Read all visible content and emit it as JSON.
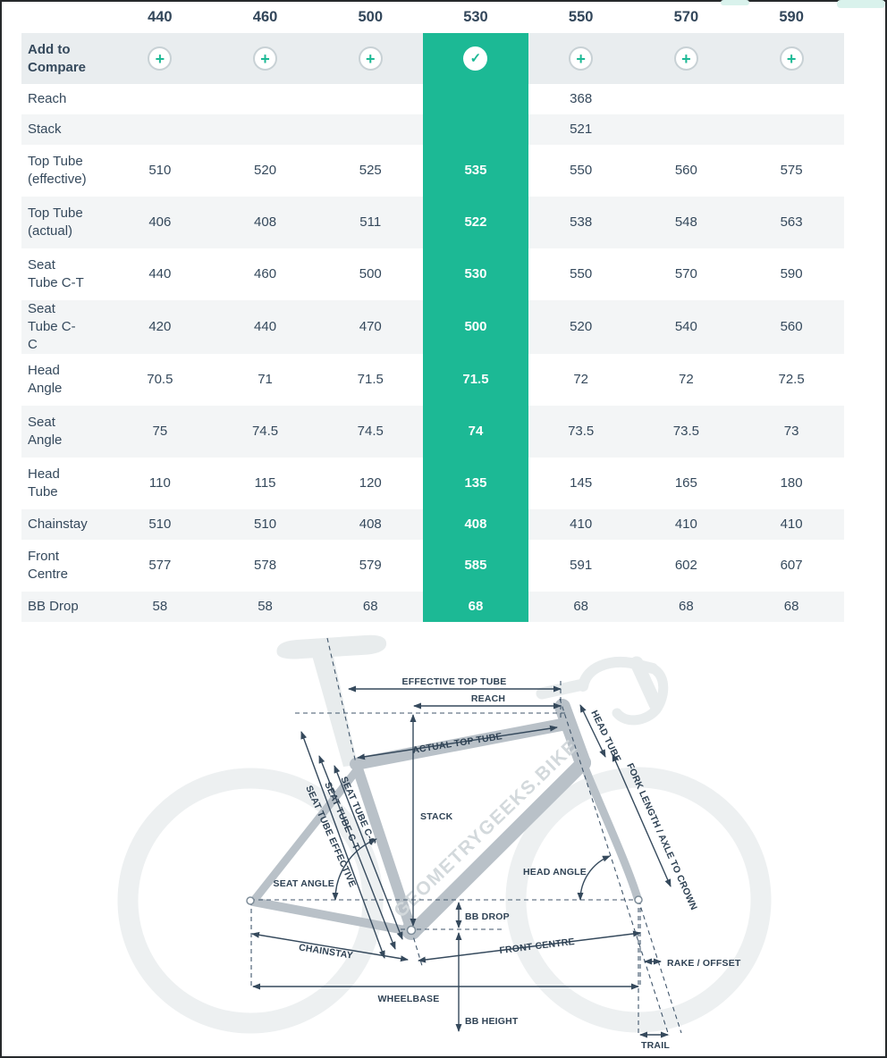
{
  "page": {
    "background": "#ffffff",
    "frame_border_color": "#26292b",
    "accent_teal": "#1cb995",
    "text_color": "#35495c",
    "stripe_color": "#f3f5f6",
    "compare_row_color": "#e9edef"
  },
  "table": {
    "columns": [
      "440",
      "460",
      "500",
      "530",
      "550",
      "570",
      "590"
    ],
    "selected_column": "530",
    "compare_row_label": "Add to Compare",
    "icons": {
      "add_glyph": "+",
      "add_icon_name": "plus-icon",
      "selected_glyph": "✓",
      "selected_icon_name": "check-icon"
    },
    "rows": [
      {
        "label": "Reach",
        "values": [
          "",
          "",
          "",
          "",
          "368",
          "",
          ""
        ]
      },
      {
        "label": "Stack",
        "values": [
          "",
          "",
          "",
          "",
          "521",
          "",
          ""
        ]
      },
      {
        "label": "Top Tube (effective)",
        "values": [
          "510",
          "520",
          "525",
          "535",
          "550",
          "560",
          "575"
        ]
      },
      {
        "label": "Top Tube (actual)",
        "values": [
          "406",
          "408",
          "511",
          "522",
          "538",
          "548",
          "563"
        ]
      },
      {
        "label": "Seat Tube C-T",
        "values": [
          "440",
          "460",
          "500",
          "530",
          "550",
          "570",
          "590"
        ]
      },
      {
        "label": "Seat Tube C-C",
        "values": [
          "420",
          "440",
          "470",
          "500",
          "520",
          "540",
          "560"
        ]
      },
      {
        "label": "Head Angle",
        "values": [
          "70.5",
          "71",
          "71.5",
          "71.5",
          "72",
          "72",
          "72.5"
        ]
      },
      {
        "label": "Seat Angle",
        "values": [
          "75",
          "74.5",
          "74.5",
          "74",
          "73.5",
          "73.5",
          "73"
        ]
      },
      {
        "label": "Head Tube",
        "values": [
          "110",
          "115",
          "120",
          "135",
          "145",
          "165",
          "180"
        ]
      },
      {
        "label": "Chainstay",
        "values": [
          "510",
          "510",
          "408",
          "408",
          "410",
          "410",
          "410"
        ]
      },
      {
        "label": "Front Centre",
        "values": [
          "577",
          "578",
          "579",
          "585",
          "591",
          "602",
          "607"
        ]
      },
      {
        "label": "BB Drop",
        "values": [
          "58",
          "58",
          "68",
          "68",
          "68",
          "68",
          "68"
        ]
      }
    ]
  },
  "diagram": {
    "watermark": "GEOMETRYGEEKS.BIKE",
    "labels": {
      "effective_top_tube": "EFFECTIVE TOP TUBE",
      "reach": "REACH",
      "actual_top_tube": "ACTUAL TOP TUBE",
      "head_tube": "HEAD TUBE",
      "fork_length": "FORK LENGTH / AXLE TO CROWN",
      "seat_tube_cc": "SEAT TUBE C-C",
      "seat_tube_ct": "SEAT TUBE C-T",
      "seat_tube_effective": "SEAT TUBE EFFECTIVE",
      "stack": "STACK",
      "seat_angle": "SEAT ANGLE",
      "head_angle": "HEAD ANGLE",
      "bb_drop": "BB DROP",
      "chainstay": "CHAINSTAY",
      "front_centre": "FRONT CENTRE",
      "rake_offset": "RAKE / OFFSET",
      "wheelbase": "WHEELBASE",
      "bb_height": "BB HEIGHT",
      "trail": "TRAIL"
    }
  }
}
